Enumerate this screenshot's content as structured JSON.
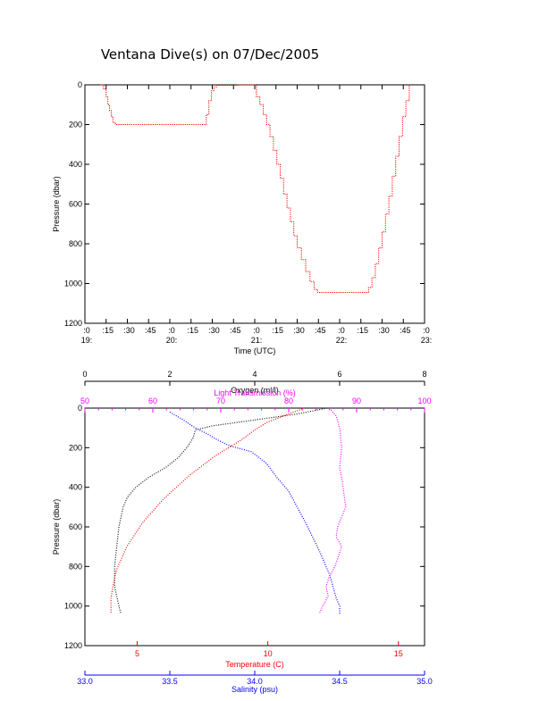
{
  "title": "Ventana Dive(s) on 07/Dec/2005",
  "colors": {
    "black": "#000000",
    "red": "#ff0000",
    "blue": "#0000ff",
    "magenta": "#ff00ff",
    "oxygen": "#111111"
  },
  "chart_data": [
    {
      "type": "line",
      "name": "pressure-vs-time",
      "xlabel": "Time (UTC)",
      "ylabel": "Pressure (dbar)",
      "x_unit": "hours UTC",
      "xlim": [
        19.0,
        23.0
      ],
      "ylim": [
        1200,
        0
      ],
      "x_ticks": [
        {
          "value": 19.0,
          "line1": ":0",
          "line2": "19:"
        },
        {
          "value": 19.25,
          "line1": ":15",
          "line2": ""
        },
        {
          "value": 19.5,
          "line1": ":30",
          "line2": ""
        },
        {
          "value": 19.75,
          "line1": ":45",
          "line2": ""
        },
        {
          "value": 20.0,
          "line1": ":0",
          "line2": "20:"
        },
        {
          "value": 20.25,
          "line1": ":15",
          "line2": ""
        },
        {
          "value": 20.5,
          "line1": ":30",
          "line2": ""
        },
        {
          "value": 20.75,
          "line1": ":45",
          "line2": ""
        },
        {
          "value": 21.0,
          "line1": ":0",
          "line2": "21:"
        },
        {
          "value": 21.25,
          "line1": ":15",
          "line2": ""
        },
        {
          "value": 21.5,
          "line1": ":30",
          "line2": ""
        },
        {
          "value": 21.75,
          "line1": ":45",
          "line2": ""
        },
        {
          "value": 22.0,
          "line1": ":0",
          "line2": "22:"
        },
        {
          "value": 22.25,
          "line1": ":15",
          "line2": ""
        },
        {
          "value": 22.5,
          "line1": ":30",
          "line2": ""
        },
        {
          "value": 22.75,
          "line1": ":45",
          "line2": ""
        },
        {
          "value": 23.0,
          "line1": ":0",
          "line2": "23:"
        }
      ],
      "y_ticks": [
        "0",
        "200",
        "400",
        "600",
        "800",
        "1000",
        "1200"
      ],
      "series": [
        {
          "color": "#ff0000",
          "x": [
            19.18,
            19.22,
            19.25,
            19.27,
            19.29,
            19.31,
            19.33,
            19.36,
            20.0,
            20.4,
            20.43,
            20.46,
            20.49,
            20.52,
            20.55,
            20.8,
            20.98,
            21.02,
            21.06,
            21.1,
            21.14,
            21.18,
            21.22,
            21.26,
            21.3,
            21.34,
            21.38,
            21.42,
            21.46,
            21.5,
            21.55,
            21.6,
            21.65,
            21.7,
            21.74,
            21.78,
            22.0,
            22.3,
            22.34,
            22.38,
            22.42,
            22.46,
            22.5,
            22.54,
            22.58,
            22.62,
            22.66,
            22.7,
            22.74,
            22.78,
            22.82
          ],
          "y": [
            0,
            20,
            60,
            100,
            130,
            160,
            190,
            200,
            200,
            200,
            150,
            80,
            30,
            10,
            2,
            0,
            0,
            60,
            100,
            150,
            200,
            260,
            330,
            400,
            470,
            550,
            620,
            690,
            760,
            820,
            880,
            940,
            990,
            1030,
            1045,
            1045,
            1045,
            1045,
            1020,
            970,
            900,
            820,
            740,
            650,
            560,
            460,
            360,
            260,
            160,
            80,
            0
          ]
        }
      ]
    },
    {
      "type": "line",
      "name": "profiles",
      "ylabel": "Pressure (dbar)",
      "ylim": [
        1200,
        0
      ],
      "y_ticks": [
        "0",
        "200",
        "400",
        "600",
        "800",
        "1000",
        "1200"
      ],
      "axes": [
        {
          "id": "oxygen",
          "label": "Oxygen (ml/l)",
          "position": "top",
          "color": "#000000",
          "xlim": [
            0,
            8
          ],
          "ticks": [
            "0",
            "2",
            "4",
            "6",
            "8"
          ]
        },
        {
          "id": "trans",
          "label": "Light Transmission (%)",
          "position": "top",
          "color": "#ff00ff",
          "xlim": [
            50,
            100
          ],
          "ticks": [
            "50",
            "60",
            "70",
            "80",
            "90",
            "100"
          ]
        },
        {
          "id": "temp",
          "label": "Temperature (C)",
          "position": "bottom",
          "color": "#ff0000",
          "xlim": [
            3.0,
            16.0
          ],
          "ticks": [
            "5",
            "10",
            "15"
          ]
        },
        {
          "id": "sal",
          "label": "Salinity (psu)",
          "position": "bottom",
          "color": "#0000ff",
          "xlim": [
            33.0,
            35.0
          ],
          "ticks": [
            "33.0",
            "33.5",
            "34.0",
            "34.5",
            "35.0"
          ]
        }
      ],
      "series": [
        {
          "axis": "oxygen",
          "color": "#111111",
          "x": [
            5.7,
            5.0,
            4.0,
            3.0,
            2.6,
            2.55,
            2.4,
            2.2,
            1.9,
            1.5,
            1.2,
            1.0,
            0.9,
            0.8,
            0.75,
            0.7,
            0.7,
            0.75,
            0.8,
            0.85
          ],
          "y": [
            0,
            30,
            60,
            90,
            110,
            150,
            200,
            250,
            300,
            350,
            400,
            450,
            500,
            600,
            700,
            800,
            900,
            950,
            1000,
            1040
          ]
        },
        {
          "axis": "temp",
          "color": "#ff0000",
          "x": [
            11.4,
            10.8,
            10.0,
            9.5,
            9.0,
            8.5,
            8.0,
            7.5,
            7.0,
            6.5,
            6.0,
            5.6,
            5.2,
            4.9,
            4.6,
            4.4,
            4.2,
            4.1,
            4.0,
            4.0
          ],
          "y": [
            0,
            30,
            70,
            110,
            160,
            200,
            240,
            290,
            340,
            400,
            460,
            520,
            580,
            640,
            700,
            760,
            820,
            880,
            960,
            1040
          ]
        },
        {
          "axis": "sal",
          "color": "#0000ff",
          "x": [
            33.5,
            33.58,
            33.65,
            33.72,
            33.78,
            33.85,
            33.98,
            34.07,
            34.13,
            34.2,
            34.25,
            34.3,
            34.34,
            34.38,
            34.41,
            34.44,
            34.46,
            34.48,
            34.5,
            34.5
          ],
          "y": [
            20,
            60,
            100,
            130,
            160,
            190,
            220,
            280,
            350,
            420,
            500,
            580,
            650,
            720,
            780,
            840,
            900,
            960,
            1000,
            1040
          ]
        },
        {
          "axis": "trans",
          "color": "#ff00ff",
          "x": [
            86,
            87,
            87.5,
            87.8,
            87.5,
            87.8,
            88,
            88.2,
            88.4,
            87.8,
            87.2,
            87.0,
            87.8,
            87.3,
            86.8,
            86.0,
            85.5,
            85.8,
            85.0,
            84.5
          ],
          "y": [
            0,
            40,
            100,
            200,
            300,
            350,
            400,
            450,
            500,
            550,
            600,
            650,
            700,
            750,
            800,
            850,
            900,
            950,
            1000,
            1040
          ]
        }
      ]
    }
  ]
}
